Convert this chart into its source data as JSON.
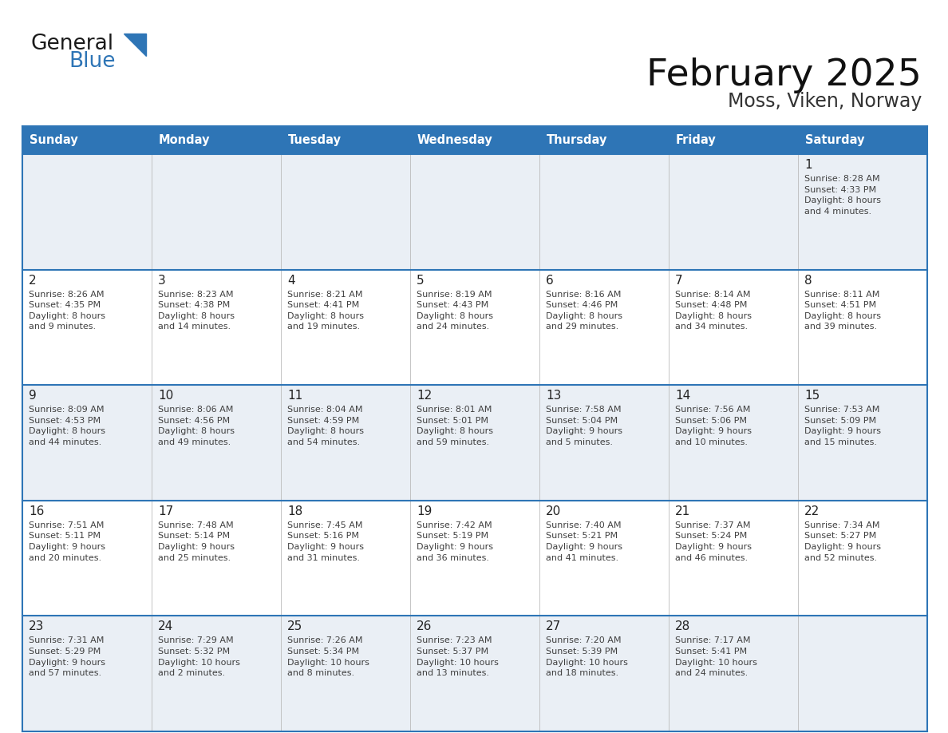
{
  "title": "February 2025",
  "subtitle": "Moss, Viken, Norway",
  "header_bg_color": "#2E75B6",
  "header_text_color": "#FFFFFF",
  "day_names": [
    "Sunday",
    "Monday",
    "Tuesday",
    "Wednesday",
    "Thursday",
    "Friday",
    "Saturday"
  ],
  "row_bg_even": "#EAEFF5",
  "row_bg_odd": "#FFFFFF",
  "grid_line_color": "#2E75B6",
  "cell_text_color": "#404040",
  "day_number_color": "#222222",
  "logo_general_color": "#1a1a1a",
  "logo_blue_color": "#2E75B6",
  "title_color": "#111111",
  "subtitle_color": "#333333",
  "weeks": [
    [
      {
        "day": null,
        "info": null
      },
      {
        "day": null,
        "info": null
      },
      {
        "day": null,
        "info": null
      },
      {
        "day": null,
        "info": null
      },
      {
        "day": null,
        "info": null
      },
      {
        "day": null,
        "info": null
      },
      {
        "day": 1,
        "info": "Sunrise: 8:28 AM\nSunset: 4:33 PM\nDaylight: 8 hours\nand 4 minutes."
      }
    ],
    [
      {
        "day": 2,
        "info": "Sunrise: 8:26 AM\nSunset: 4:35 PM\nDaylight: 8 hours\nand 9 minutes."
      },
      {
        "day": 3,
        "info": "Sunrise: 8:23 AM\nSunset: 4:38 PM\nDaylight: 8 hours\nand 14 minutes."
      },
      {
        "day": 4,
        "info": "Sunrise: 8:21 AM\nSunset: 4:41 PM\nDaylight: 8 hours\nand 19 minutes."
      },
      {
        "day": 5,
        "info": "Sunrise: 8:19 AM\nSunset: 4:43 PM\nDaylight: 8 hours\nand 24 minutes."
      },
      {
        "day": 6,
        "info": "Sunrise: 8:16 AM\nSunset: 4:46 PM\nDaylight: 8 hours\nand 29 minutes."
      },
      {
        "day": 7,
        "info": "Sunrise: 8:14 AM\nSunset: 4:48 PM\nDaylight: 8 hours\nand 34 minutes."
      },
      {
        "day": 8,
        "info": "Sunrise: 8:11 AM\nSunset: 4:51 PM\nDaylight: 8 hours\nand 39 minutes."
      }
    ],
    [
      {
        "day": 9,
        "info": "Sunrise: 8:09 AM\nSunset: 4:53 PM\nDaylight: 8 hours\nand 44 minutes."
      },
      {
        "day": 10,
        "info": "Sunrise: 8:06 AM\nSunset: 4:56 PM\nDaylight: 8 hours\nand 49 minutes."
      },
      {
        "day": 11,
        "info": "Sunrise: 8:04 AM\nSunset: 4:59 PM\nDaylight: 8 hours\nand 54 minutes."
      },
      {
        "day": 12,
        "info": "Sunrise: 8:01 AM\nSunset: 5:01 PM\nDaylight: 8 hours\nand 59 minutes."
      },
      {
        "day": 13,
        "info": "Sunrise: 7:58 AM\nSunset: 5:04 PM\nDaylight: 9 hours\nand 5 minutes."
      },
      {
        "day": 14,
        "info": "Sunrise: 7:56 AM\nSunset: 5:06 PM\nDaylight: 9 hours\nand 10 minutes."
      },
      {
        "day": 15,
        "info": "Sunrise: 7:53 AM\nSunset: 5:09 PM\nDaylight: 9 hours\nand 15 minutes."
      }
    ],
    [
      {
        "day": 16,
        "info": "Sunrise: 7:51 AM\nSunset: 5:11 PM\nDaylight: 9 hours\nand 20 minutes."
      },
      {
        "day": 17,
        "info": "Sunrise: 7:48 AM\nSunset: 5:14 PM\nDaylight: 9 hours\nand 25 minutes."
      },
      {
        "day": 18,
        "info": "Sunrise: 7:45 AM\nSunset: 5:16 PM\nDaylight: 9 hours\nand 31 minutes."
      },
      {
        "day": 19,
        "info": "Sunrise: 7:42 AM\nSunset: 5:19 PM\nDaylight: 9 hours\nand 36 minutes."
      },
      {
        "day": 20,
        "info": "Sunrise: 7:40 AM\nSunset: 5:21 PM\nDaylight: 9 hours\nand 41 minutes."
      },
      {
        "day": 21,
        "info": "Sunrise: 7:37 AM\nSunset: 5:24 PM\nDaylight: 9 hours\nand 46 minutes."
      },
      {
        "day": 22,
        "info": "Sunrise: 7:34 AM\nSunset: 5:27 PM\nDaylight: 9 hours\nand 52 minutes."
      }
    ],
    [
      {
        "day": 23,
        "info": "Sunrise: 7:31 AM\nSunset: 5:29 PM\nDaylight: 9 hours\nand 57 minutes."
      },
      {
        "day": 24,
        "info": "Sunrise: 7:29 AM\nSunset: 5:32 PM\nDaylight: 10 hours\nand 2 minutes."
      },
      {
        "day": 25,
        "info": "Sunrise: 7:26 AM\nSunset: 5:34 PM\nDaylight: 10 hours\nand 8 minutes."
      },
      {
        "day": 26,
        "info": "Sunrise: 7:23 AM\nSunset: 5:37 PM\nDaylight: 10 hours\nand 13 minutes."
      },
      {
        "day": 27,
        "info": "Sunrise: 7:20 AM\nSunset: 5:39 PM\nDaylight: 10 hours\nand 18 minutes."
      },
      {
        "day": 28,
        "info": "Sunrise: 7:17 AM\nSunset: 5:41 PM\nDaylight: 10 hours\nand 24 minutes."
      },
      {
        "day": null,
        "info": null
      }
    ]
  ]
}
